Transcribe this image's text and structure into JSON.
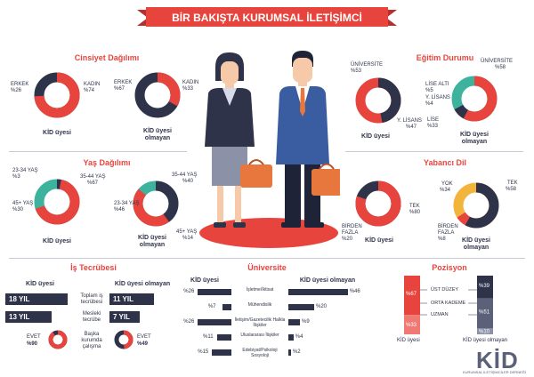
{
  "title": "BİR BAKIŞTA KURUMSAL İLETİŞİMCİ",
  "colors": {
    "red": "#e8443e",
    "navy": "#2f3349",
    "teal": "#3db39e",
    "yellow": "#f3b43c",
    "slate": "#5b6178"
  },
  "gender": {
    "title": "Cinsiyet Dağılımı",
    "kid": {
      "male_label": "ERKEK",
      "male_value": "%26",
      "female_label": "KADIN",
      "female_value": "%74",
      "caption": "KİD üyesi"
    },
    "nonkid": {
      "male_label": "ERKEK",
      "male_value": "%67",
      "female_label": "KADIN",
      "female_value": "%33",
      "caption": "KİD üyesi olmayan"
    }
  },
  "age": {
    "title": "Yaş Dağılımı",
    "kid": {
      "a_label": "23-34 YAŞ",
      "a_value": "%3",
      "b_label": "35-44 YAŞ",
      "b_value": "%67",
      "c_label": "45+ YAŞ",
      "c_value": "%30",
      "caption": "KİD üyesi"
    },
    "nonkid": {
      "a_label": "23-34 YAŞ",
      "a_value": "%46",
      "b_label": "35-44 YAŞ",
      "b_value": "%40",
      "c_label": "45+ YAŞ",
      "c_value": "%14",
      "caption": "KİD üyesi olmayan"
    }
  },
  "education": {
    "title": "Eğitim Durumu",
    "kid": {
      "uni_label": "ÜNİVERSİTE",
      "uni_value": "%53",
      "ylisans_label": "Y. LİSANS",
      "ylisans_value": "%47",
      "caption": "KİD üyesi"
    },
    "nonkid": {
      "uni_label": "ÜNİVERSİTE",
      "uni_value": "%58",
      "lisealti_label": "LİSE ALTI",
      "lisealti_value": "%5",
      "ylisans_label": "Y. LİSANS",
      "ylisans_value": "%4",
      "lise_label": "LİSE",
      "lise_value": "%33",
      "caption": "KİD üyesi olmayan"
    }
  },
  "language": {
    "title": "Yabancı Dil",
    "kid": {
      "tek_label": "TEK",
      "tek_value": "%80",
      "birden_label": "BİRDEN FAZLA",
      "birden_value": "%20",
      "caption": "KİD üyesi"
    },
    "nonkid": {
      "yok_label": "YOK",
      "yok_value": "%34",
      "tek_label": "TEK",
      "tek_value": "%58",
      "birden_label": "BİRDEN FAZLA",
      "birden_value": "%8",
      "caption": "KİD üyesi olmayan"
    }
  },
  "experience": {
    "title": "İş Tecrübesi",
    "kid_heading": "KİD üyesi",
    "nonkid_heading": "KİD üyesi olmayan",
    "total_label": "Toplam iş tecrübesi",
    "prof_label": "Mesleki tecrübe",
    "kid_total": "18 YIL",
    "kid_prof": "13 YIL",
    "nonkid_total": "11 YIL",
    "nonkid_prof": "7 YIL",
    "yes_label": "EVET",
    "kid_yes": "%90",
    "nonkid_yes": "%49",
    "other_label": "Başka kurumda çalışma"
  },
  "university": {
    "title": "Üniversite",
    "kid_heading": "KİD üyesi",
    "nonkid_heading": "KİD üyesi olmayan",
    "rows": [
      {
        "field": "İşletme/İktisat",
        "kid": "%26",
        "nonkid": "%46",
        "kid_v": 26,
        "nonkid_v": 46
      },
      {
        "field": "Mühendislik",
        "kid": "%7",
        "nonkid": "%20",
        "kid_v": 7,
        "nonkid_v": 20
      },
      {
        "field": "İletişim/Gazetecilik Halkla İlişkiler",
        "kid": "%26",
        "nonkid": "%9",
        "kid_v": 26,
        "nonkid_v": 9
      },
      {
        "field": "Uluslararası İlişkiler",
        "kid": "%11",
        "nonkid": "%4",
        "kid_v": 11,
        "nonkid_v": 4
      },
      {
        "field": "Edebiyat/Psikoloji Sosyoloji",
        "kid": "%15",
        "nonkid": "%2",
        "kid_v": 15,
        "nonkid_v": 2
      }
    ]
  },
  "position": {
    "title": "Pozisyon",
    "levels": [
      "ÜST DÜZEY",
      "ORTA KADEME",
      "UZMAN"
    ],
    "kid": {
      "ust": "%67",
      "uzman": "%33",
      "ust_v": 67,
      "uzman_v": 33,
      "caption": "KİD üyesi"
    },
    "nonkid": {
      "ust": "%39",
      "orta": "%51",
      "uzman": "%10",
      "ust_v": 39,
      "orta_v": 51,
      "uzman_v": 10,
      "caption": "KİD üyesi olmayan"
    }
  },
  "logo": {
    "text": "KİD",
    "subtitle": "KURUMSAL İLETİŞİMCİLER DERNEĞİ"
  }
}
